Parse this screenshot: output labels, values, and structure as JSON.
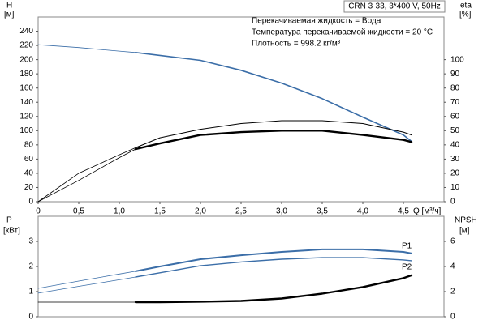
{
  "chart_data": [
    {
      "type": "line",
      "title": "CRN 3-33, 3*400 V, 50Hz",
      "annotations": [
        "Перекачиваемая жидкость = Вода",
        "Температура перекачиваемой жидкости = 20 °C",
        "Плотность = 998.2 кг/м³"
      ],
      "ylabel": "H",
      "ylabel_unit": "[м]",
      "y2label": "eta",
      "y2label_unit": "[%]",
      "xlabel": "Q [м³/ч]",
      "xlim": [
        0,
        5.0
      ],
      "xticks": [
        0,
        {
          "value": 0.5,
          "label": "0,5"
        },
        {
          "value": 1.0,
          "label": "1,0"
        },
        {
          "value": 1.5,
          "label": "1,5"
        },
        {
          "value": 2.0,
          "label": "2,0"
        },
        {
          "value": 2.5,
          "label": "2,5"
        },
        {
          "value": 3.0,
          "label": "3,0"
        },
        {
          "value": 3.5,
          "label": "3,5"
        },
        {
          "value": 4.0,
          "label": "4,0"
        },
        {
          "value": 4.5,
          "label": "4,5"
        }
      ],
      "ylim": [
        0,
        260
      ],
      "yticks": [
        0,
        20,
        40,
        60,
        80,
        100,
        120,
        140,
        160,
        180,
        200,
        220,
        240
      ],
      "y2lim": [
        0,
        130
      ],
      "y2ticks": [
        0,
        10,
        20,
        30,
        40,
        50,
        60,
        70,
        80,
        90,
        100
      ],
      "x": [
        0,
        0.5,
        1.0,
        1.2,
        1.5,
        2.0,
        2.5,
        3.0,
        3.5,
        4.0,
        4.5,
        4.6
      ],
      "series": [
        {
          "color": "#3b6ea8",
          "values": [
            221,
            217,
            212,
            210,
            206,
            199,
            185,
            167,
            145,
            119,
            94,
            85
          ]
        },
        {
          "color": "#000000",
          "axis": "y2",
          "values": [
            0,
            20,
            33,
            38,
            45,
            51,
            55,
            57,
            57,
            55,
            49,
            47
          ]
        },
        {
          "color": "#000000",
          "axis": "y2",
          "values": [
            0,
            15,
            31,
            37,
            41,
            47,
            49,
            50,
            50,
            47,
            43.5,
            42
          ]
        }
      ]
    },
    {
      "type": "line",
      "ylabel": "P",
      "ylabel_unit": "[кВт]",
      "y2label": "NPSH",
      "y2label_unit": "[м]",
      "xlim": [
        0,
        5.0
      ],
      "ylim": [
        0,
        4
      ],
      "yticks": [
        0,
        1,
        2,
        3
      ],
      "y2lim": [
        0,
        8
      ],
      "y2ticks": [
        0,
        2,
        4,
        6
      ],
      "x": [
        0,
        0.5,
        1.0,
        1.2,
        1.5,
        2.0,
        2.5,
        3.0,
        3.5,
        4.0,
        4.5,
        4.6
      ],
      "series": [
        {
          "name": "P1",
          "color": "#3b6ea8",
          "values": [
            1.13,
            1.42,
            1.7,
            1.81,
            2.0,
            2.29,
            2.45,
            2.58,
            2.68,
            2.68,
            2.58,
            2.52
          ]
        },
        {
          "name": "P2",
          "color": "#3b6ea8",
          "values": [
            0.94,
            1.21,
            1.47,
            1.58,
            1.75,
            2.03,
            2.18,
            2.29,
            2.35,
            2.35,
            2.26,
            2.23
          ]
        },
        {
          "color": "#000000",
          "axis": "y2",
          "values": [
            1.16,
            1.16,
            1.16,
            1.16,
            1.16,
            1.2,
            1.26,
            1.45,
            1.84,
            2.36,
            3.07,
            3.3
          ]
        }
      ]
    }
  ]
}
